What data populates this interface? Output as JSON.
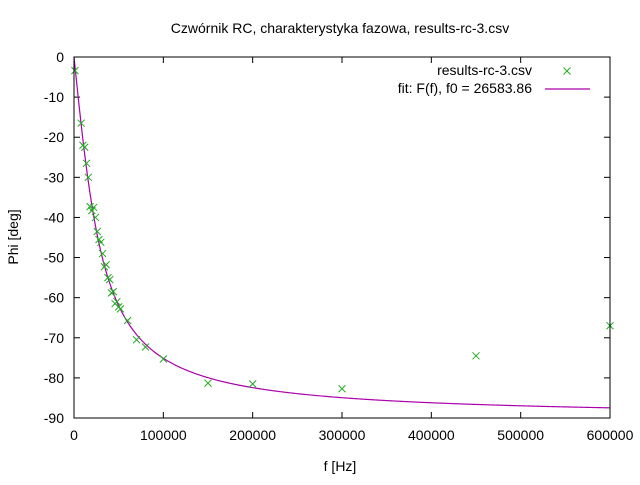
{
  "chart_data": {
    "type": "scatter",
    "title": "Czwórnik RC, charakterystyka fazowa, results-rc-3.csv",
    "xlabel": "f [Hz]",
    "ylabel": "Phi [deg]",
    "xlim": [
      0,
      600000
    ],
    "ylim": [
      -90,
      0
    ],
    "x_ticks": [
      0,
      100000,
      200000,
      300000,
      400000,
      500000,
      600000
    ],
    "y_ticks": [
      0,
      -10,
      -20,
      -30,
      -40,
      -50,
      -60,
      -70,
      -80,
      -90
    ],
    "grid": false,
    "legend_position": "top-right",
    "series": [
      {
        "name": "results-rc-3.csv",
        "kind": "points",
        "marker": "x",
        "color": "#22aa22",
        "points": [
          [
            1000,
            -3.4
          ],
          [
            8000,
            -16.5
          ],
          [
            10000,
            -22.0
          ],
          [
            12000,
            -22.5
          ],
          [
            14000,
            -26.5
          ],
          [
            16000,
            -30.0
          ],
          [
            18000,
            -37.3
          ],
          [
            20000,
            -38.3
          ],
          [
            22000,
            -37.5
          ],
          [
            24000,
            -40.0
          ],
          [
            26000,
            -43.5
          ],
          [
            28000,
            -45.5
          ],
          [
            30000,
            -46.2
          ],
          [
            32000,
            -49.0
          ],
          [
            34000,
            -52.3
          ],
          [
            36000,
            -51.8
          ],
          [
            38000,
            -55.0
          ],
          [
            40000,
            -55.5
          ],
          [
            42000,
            -58.8
          ],
          [
            44000,
            -58.5
          ],
          [
            46000,
            -61.5
          ],
          [
            48000,
            -61.0
          ],
          [
            50000,
            -62.3
          ],
          [
            52000,
            -62.8
          ],
          [
            60000,
            -65.7
          ],
          [
            70000,
            -70.5
          ],
          [
            80000,
            -72.3
          ],
          [
            100000,
            -75.3
          ],
          [
            150000,
            -81.3
          ],
          [
            200000,
            -81.5
          ],
          [
            300000,
            -82.7
          ],
          [
            450000,
            -74.5
          ],
          [
            600000,
            -67.0
          ]
        ]
      },
      {
        "name": "fit: F(f), f0 = 26583.86",
        "kind": "line",
        "color": "#aa00aa",
        "f0": 26583.86
      }
    ]
  }
}
